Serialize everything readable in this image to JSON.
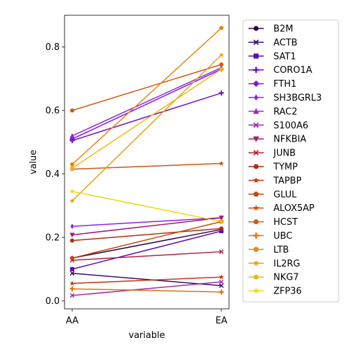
{
  "chart_data": {
    "type": "line",
    "xlabel": "variable",
    "ylabel": "value",
    "x": [
      "AA",
      "EA"
    ],
    "ylim": [
      -0.025,
      0.9
    ],
    "yticks": [
      0.0,
      0.2,
      0.4,
      0.6,
      0.8
    ],
    "ytick_labels": [
      "0.0",
      "0.2",
      "0.4",
      "0.6",
      "0.8"
    ],
    "grid": false,
    "legend_position": "outside-right",
    "series": [
      {
        "name": "B2M",
        "color": "#2c0a45",
        "marker": "circle",
        "values": [
          0.135,
          0.225
        ]
      },
      {
        "name": "ACTB",
        "color": "#3d0a66",
        "marker": "x",
        "values": [
          0.087,
          0.048
        ]
      },
      {
        "name": "SAT1",
        "color": "#5a0cb8",
        "marker": "square",
        "values": [
          0.1,
          0.22
        ]
      },
      {
        "name": "CORO1A",
        "color": "#6e10d0",
        "marker": "plus",
        "values": [
          0.505,
          0.655
        ]
      },
      {
        "name": "FTH1",
        "color": "#7c18e2",
        "marker": "diamond",
        "values": [
          0.51,
          0.73
        ]
      },
      {
        "name": "SH3BGRL3",
        "color": "#8a1de8",
        "marker": "thin-diamond",
        "values": [
          0.235,
          0.262
        ]
      },
      {
        "name": "RAC2",
        "color": "#9324e0",
        "marker": "triangle-up",
        "values": [
          0.52,
          0.735
        ]
      },
      {
        "name": "S100A6",
        "color": "#a62aa8",
        "marker": "x",
        "values": [
          0.017,
          0.06
        ]
      },
      {
        "name": "NFKBIA",
        "color": "#a01a70",
        "marker": "triangle-down",
        "values": [
          0.208,
          0.262
        ]
      },
      {
        "name": "JUNB",
        "color": "#b0203e",
        "marker": "x",
        "values": [
          0.128,
          0.155
        ]
      },
      {
        "name": "TYMP",
        "color": "#b32a10",
        "marker": "circle",
        "values": [
          0.19,
          0.228
        ]
      },
      {
        "name": "TAPBP",
        "color": "#c43810",
        "marker": "star",
        "values": [
          0.055,
          0.075
        ]
      },
      {
        "name": "GLUL",
        "color": "#c24a10",
        "marker": "pentagon",
        "values": [
          0.135,
          0.25
        ]
      },
      {
        "name": "ALOX5AP",
        "color": "#cf5210",
        "marker": "star",
        "values": [
          0.415,
          0.433
        ]
      },
      {
        "name": "HCST",
        "color": "#d05a10",
        "marker": "circle",
        "values": [
          0.6,
          0.745
        ]
      },
      {
        "name": "UBC",
        "color": "#e07010",
        "marker": "plus",
        "values": [
          0.038,
          0.028
        ]
      },
      {
        "name": "LTB",
        "color": "#e88410",
        "marker": "circle",
        "values": [
          0.43,
          0.86
        ]
      },
      {
        "name": "IL2RG",
        "color": "#e8a010",
        "marker": "star",
        "values": [
          0.315,
          0.775
        ]
      },
      {
        "name": "NKG7",
        "color": "#f0b810",
        "marker": "circle",
        "values": [
          0.418,
          0.73
        ]
      },
      {
        "name": "ZFP36",
        "color": "#f5d70a",
        "marker": "star",
        "values": [
          0.345,
          0.25
        ]
      }
    ]
  }
}
